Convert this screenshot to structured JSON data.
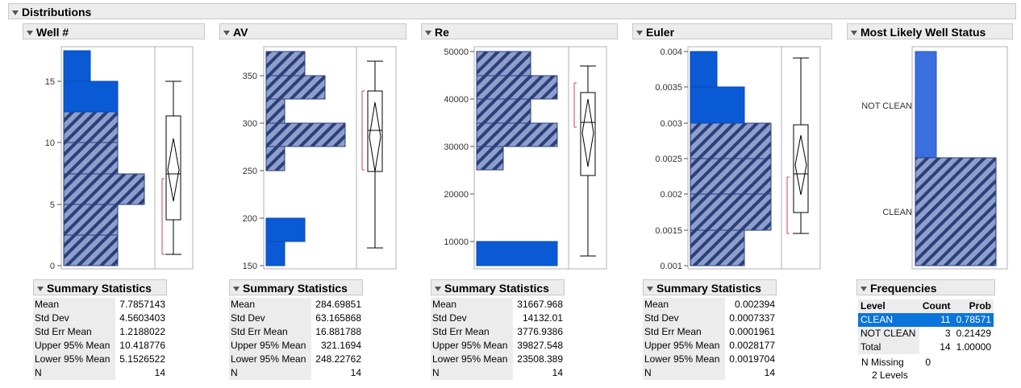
{
  "title": "Distributions",
  "panels": {
    "well": {
      "title": "Well #",
      "ticks": [
        "0",
        "5",
        "10",
        "15"
      ],
      "stats_title": "Summary Statistics",
      "stats": [
        {
          "label": "Mean",
          "value": "7.7857143"
        },
        {
          "label": "Std Dev",
          "value": "4.5603403"
        },
        {
          "label": "Std Err Mean",
          "value": "1.2188022"
        },
        {
          "label": "Upper 95% Mean",
          "value": "10.418776"
        },
        {
          "label": "Lower 95% Mean",
          "value": "5.1526522"
        },
        {
          "label": "N",
          "value": "14"
        }
      ]
    },
    "av": {
      "title": "AV",
      "ticks": [
        "150",
        "200",
        "250",
        "300",
        "350"
      ],
      "stats_title": "Summary Statistics",
      "stats": [
        {
          "label": "Mean",
          "value": "284.69851"
        },
        {
          "label": "Std Dev",
          "value": "63.165868"
        },
        {
          "label": "Std Err Mean",
          "value": "16.881788"
        },
        {
          "label": "Upper 95% Mean",
          "value": "321.1694"
        },
        {
          "label": "Lower 95% Mean",
          "value": "248.22762"
        },
        {
          "label": "N",
          "value": "14"
        }
      ]
    },
    "re": {
      "title": "Re",
      "ticks": [
        "10000",
        "20000",
        "30000",
        "40000",
        "50000"
      ],
      "stats_title": "Summary Statistics",
      "stats": [
        {
          "label": "Mean",
          "value": "31667.968"
        },
        {
          "label": "Std Dev",
          "value": "14132.01"
        },
        {
          "label": "Std Err Mean",
          "value": "3776.9386"
        },
        {
          "label": "Upper 95% Mean",
          "value": "39827.548"
        },
        {
          "label": "Lower 95% Mean",
          "value": "23508.389"
        },
        {
          "label": "N",
          "value": "14"
        }
      ]
    },
    "euler": {
      "title": "Euler",
      "ticks": [
        "0.001",
        "0.0015",
        "0.002",
        "0.0025",
        "0.003",
        "0.0035",
        "0.004"
      ],
      "stats_title": "Summary Statistics",
      "stats": [
        {
          "label": "Mean",
          "value": "0.002394"
        },
        {
          "label": "Std Dev",
          "value": "0.0007337"
        },
        {
          "label": "Std Err Mean",
          "value": "0.0001961"
        },
        {
          "label": "Upper 95% Mean",
          "value": "0.0028177"
        },
        {
          "label": "Lower 95% Mean",
          "value": "0.0019704"
        },
        {
          "label": "N",
          "value": "14"
        }
      ]
    },
    "status": {
      "title": "Most Likely Well Status",
      "bar_labels": [
        "NOT CLEAN",
        "CLEAN"
      ],
      "freq_title": "Frequencies",
      "headers": {
        "level": "Level",
        "count": "Count",
        "prob": "Prob"
      },
      "rows": [
        {
          "level": "CLEAN",
          "count": "11",
          "prob": "0.78571"
        },
        {
          "level": "NOT CLEAN",
          "count": "3",
          "prob": "0.21429"
        },
        {
          "level": "Total",
          "count": "14",
          "prob": "1.00000"
        }
      ],
      "missing_label": "N Missing",
      "missing_value": "0",
      "levels_text": "2  Levels"
    }
  },
  "colors": {
    "selected": "#0a5ad6",
    "unselected": "#8e9fcc",
    "stripe": "#2b3f7a"
  }
}
